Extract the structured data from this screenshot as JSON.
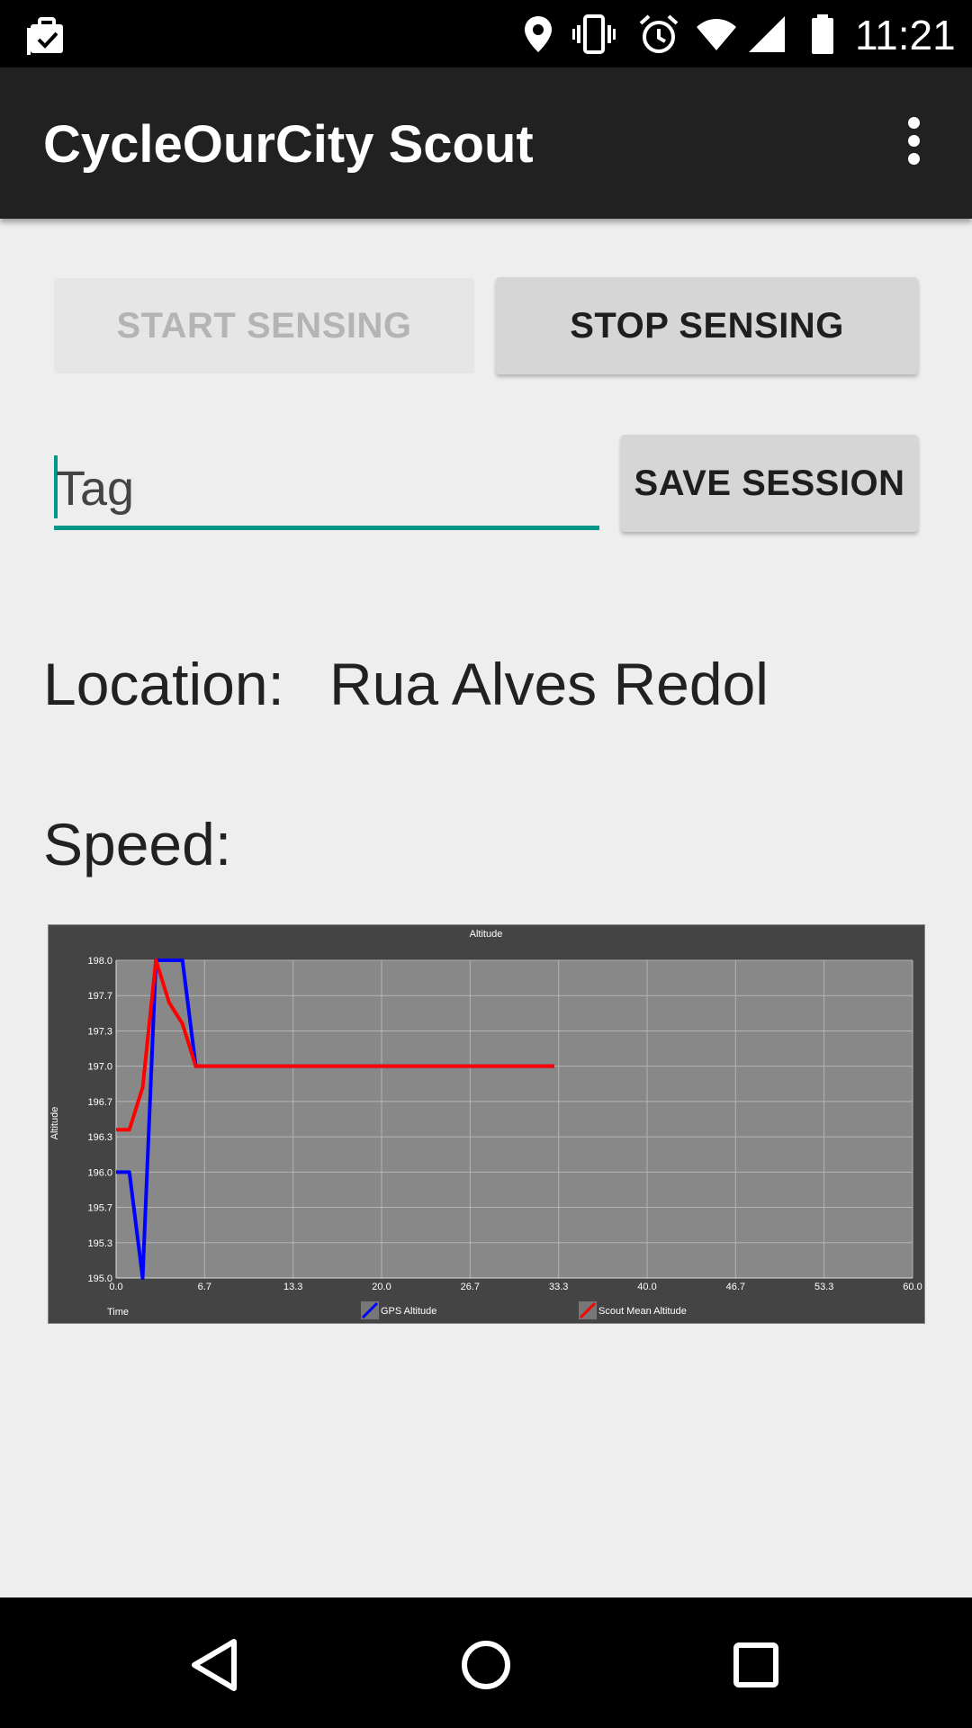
{
  "status_bar": {
    "time": "11:21",
    "left_icon": "checkbox-clipboard-icon",
    "icons": [
      "location-pin-icon",
      "vibrate-icon",
      "alarm-icon",
      "wifi-icon",
      "signal-icon",
      "battery-icon"
    ]
  },
  "app_bar": {
    "title": "CycleOurCity Scout",
    "overflow_icon": "more-vert-icon"
  },
  "controls": {
    "start_label": "START SENSING",
    "start_enabled": false,
    "stop_label": "STOP SENSING",
    "tag_placeholder": "Tag",
    "save_label": "SAVE SESSION"
  },
  "info": {
    "location_label": "Location:",
    "location_value": "Rua Alves Redol",
    "speed_label": "Speed:"
  },
  "colors": {
    "accent": "#009688",
    "gps_series": "#0000ff",
    "scout_series": "#ff0000",
    "chart_bg": "#444444",
    "plot_bg": "#888888"
  },
  "chart_data": {
    "type": "line",
    "title": "Altitude",
    "xlabel": "Time",
    "ylabel": "Altitude",
    "xlim": [
      0,
      60
    ],
    "ylim": [
      195,
      198
    ],
    "xticks": [
      "0.0",
      "6.7",
      "13.3",
      "20.0",
      "26.7",
      "33.3",
      "40.0",
      "46.7",
      "53.3",
      "60.0"
    ],
    "yticks": [
      "195.0",
      "195.3",
      "195.7",
      "196.0",
      "196.3",
      "196.7",
      "197.0",
      "197.3",
      "197.7",
      "198.0"
    ],
    "grid": true,
    "legend_position": "bottom",
    "series": [
      {
        "name": "GPS Altitude",
        "color": "#0000ff",
        "x": [
          0,
          1,
          2,
          3,
          4,
          5,
          6,
          33
        ],
        "y": [
          196.0,
          196.0,
          195.0,
          198.0,
          198.0,
          198.0,
          197.0,
          197.0
        ]
      },
      {
        "name": "Scout Mean Altitude",
        "color": "#ff0000",
        "x": [
          0,
          1,
          2,
          3,
          4,
          5,
          6,
          33
        ],
        "y": [
          196.4,
          196.4,
          196.8,
          198.0,
          197.6,
          197.4,
          197.0,
          197.0
        ]
      }
    ]
  },
  "nav_bar": {
    "icons": [
      "back-icon",
      "home-icon",
      "recents-icon"
    ]
  }
}
